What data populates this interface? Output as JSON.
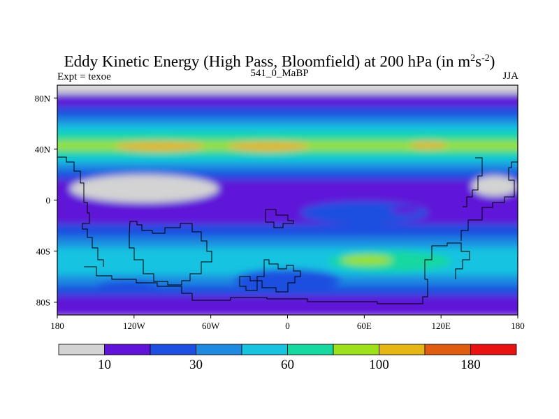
{
  "header": {
    "title_main": "Eddy Kinetic Energy (High Pass, Bloomfield) at 200 hPa (in m",
    "title_sup1": "2",
    "title_s": "s",
    "title_sup2": "-2",
    "title_close": ")",
    "subtitle": "541_0_MaBP",
    "left_label": "Expt = texoe",
    "right_label": "JJA"
  },
  "chart_data": {
    "type": "heatmap",
    "title": "Eddy Kinetic Energy (High Pass, Bloomfield) at 200 hPa (in m2s-2)",
    "subtitle": "541_0_MaBP",
    "left_annotation": "Expt = texoe",
    "right_annotation": "JJA",
    "x_range": [
      -180,
      180
    ],
    "y_range": [
      -90,
      90
    ],
    "x_ticks": [
      {
        "value": -180,
        "label": "180"
      },
      {
        "value": -120,
        "label": "120W"
      },
      {
        "value": -60,
        "label": "60W"
      },
      {
        "value": 0,
        "label": "0"
      },
      {
        "value": 60,
        "label": "60E"
      },
      {
        "value": 120,
        "label": "120E"
      },
      {
        "value": 180,
        "label": "180"
      }
    ],
    "y_ticks": [
      {
        "value": 80,
        "label": "80N"
      },
      {
        "value": 40,
        "label": "40N"
      },
      {
        "value": 0,
        "label": "0"
      },
      {
        "value": -40,
        "label": "40S"
      },
      {
        "value": -80,
        "label": "80S"
      }
    ],
    "levels": [
      0,
      10,
      20,
      30,
      45,
      60,
      80,
      100,
      140,
      180,
      220
    ],
    "colors": [
      "#d3d3d3",
      "#5f14d8",
      "#1f4fe0",
      "#1e8ae0",
      "#18c3e0",
      "#16d8a0",
      "#9ee01a",
      "#e6b614",
      "#e05c10",
      "#e81212"
    ],
    "colorbar_labels": [
      {
        "boundary": 1,
        "label": "10"
      },
      {
        "boundary": 3,
        "label": "30"
      },
      {
        "boundary": 5,
        "label": "60"
      },
      {
        "boundary": 7,
        "label": "100"
      },
      {
        "boundary": 9,
        "label": "180"
      }
    ],
    "field_bands": [
      {
        "lat_top": 90,
        "lat_bottom": 82,
        "value": 5
      },
      {
        "lat_top": 82,
        "lat_bottom": 72,
        "value": 15
      },
      {
        "lat_top": 72,
        "lat_bottom": 64,
        "value": 25
      },
      {
        "lat_top": 64,
        "lat_bottom": 58,
        "value": 40
      },
      {
        "lat_top": 58,
        "lat_bottom": 52,
        "value": 55
      },
      {
        "lat_top": 52,
        "lat_bottom": 45,
        "value": 70
      },
      {
        "lat_top": 45,
        "lat_bottom": 38,
        "value": 90
      },
      {
        "lat_top": 38,
        "lat_bottom": 33,
        "value": 70
      },
      {
        "lat_top": 33,
        "lat_bottom": 28,
        "value": 55
      },
      {
        "lat_top": 28,
        "lat_bottom": 22,
        "value": 40
      },
      {
        "lat_top": 22,
        "lat_bottom": 15,
        "value": 25
      },
      {
        "lat_top": 15,
        "lat_bottom": 5,
        "value": 15
      },
      {
        "lat_top": 5,
        "lat_bottom": -20,
        "value": 15
      },
      {
        "lat_top": -20,
        "lat_bottom": -30,
        "value": 25
      },
      {
        "lat_top": -30,
        "lat_bottom": -38,
        "value": 40
      },
      {
        "lat_top": -38,
        "lat_bottom": -60,
        "value": 55
      },
      {
        "lat_top": -60,
        "lat_bottom": -68,
        "value": 40
      },
      {
        "lat_top": -68,
        "lat_bottom": -76,
        "value": 25
      },
      {
        "lat_top": -76,
        "lat_bottom": -90,
        "value": 15
      }
    ],
    "field_features": [
      {
        "name": "low-region-tropical-west",
        "value": 5,
        "center": [
          -112,
          9
        ],
        "radius": [
          58,
          11
        ]
      },
      {
        "name": "low-region-tropical-east",
        "value": 5,
        "center": [
          162,
          11
        ],
        "radius": [
          18,
          8
        ]
      },
      {
        "name": "maximum-north-pacific",
        "value": 110,
        "center": [
          -100,
          42
        ],
        "radius": [
          35,
          4
        ]
      },
      {
        "name": "maximum-north-atlantic",
        "value": 110,
        "center": [
          -15,
          42
        ],
        "radius": [
          32,
          4
        ]
      },
      {
        "name": "maximum-north-asia",
        "value": 110,
        "center": [
          110,
          43
        ],
        "radius": [
          15,
          3
        ]
      },
      {
        "name": "tropical-blue-east",
        "value": 25,
        "center": [
          60,
          -10
        ],
        "radius": [
          50,
          9
        ]
      },
      {
        "name": "tropical-core-east",
        "value": 15,
        "center": [
          92,
          -8
        ],
        "radius": [
          12,
          3
        ]
      },
      {
        "name": "southern-jet-core",
        "value": 70,
        "center": [
          80,
          -48
        ],
        "radius": [
          48,
          8
        ]
      },
      {
        "name": "southern-jet-maximum",
        "value": 90,
        "center": [
          62,
          -47
        ],
        "radius": [
          20,
          4
        ]
      },
      {
        "name": "south-atlantic-minimum",
        "value": 25,
        "center": [
          0,
          -62
        ],
        "radius": [
          42,
          8
        ]
      },
      {
        "name": "south-pacific-minimum",
        "value": 25,
        "center": [
          -125,
          -68
        ],
        "radius": [
          25,
          5
        ]
      }
    ]
  }
}
